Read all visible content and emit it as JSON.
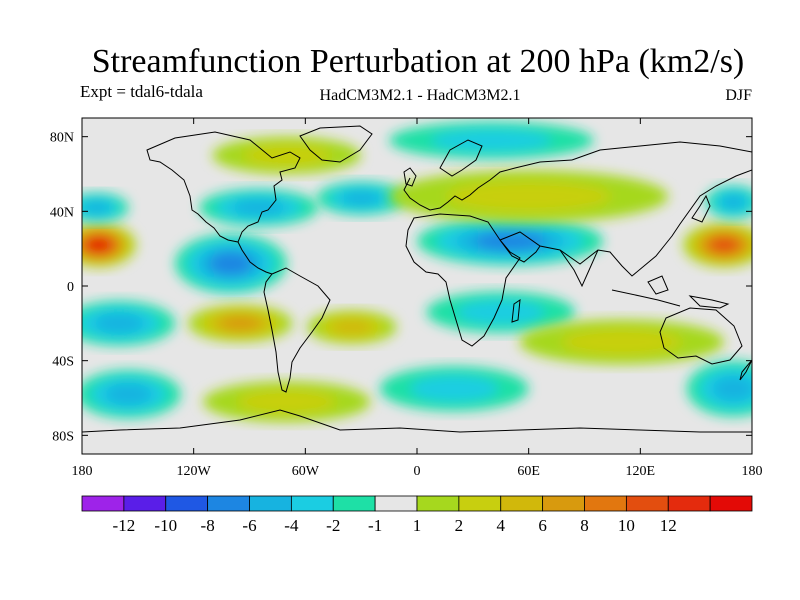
{
  "title": "Streamfunction Perturbation at 200 hPa (km2/s)",
  "subtitle_left": "Expt = tdal6-tdala",
  "subtitle_center": "HadCM3M2.1 - HadCM3M2.1",
  "subtitle_right": "DJF",
  "map": {
    "projection": "cylindrical equidistant",
    "lon_range": [
      -180,
      180
    ],
    "lat_range": [
      -90,
      90
    ],
    "background_color": "#e6e6e6",
    "lon_ticks": [
      {
        "value": -180,
        "label": "180"
      },
      {
        "value": -120,
        "label": "120W"
      },
      {
        "value": -60,
        "label": "60W"
      },
      {
        "value": 0,
        "label": "0"
      },
      {
        "value": 60,
        "label": "60E"
      },
      {
        "value": 120,
        "label": "120E"
      },
      {
        "value": 180,
        "label": "180"
      }
    ],
    "lat_ticks": [
      {
        "value": 80,
        "label": "80N"
      },
      {
        "value": 40,
        "label": "40N"
      },
      {
        "value": 0,
        "label": "0"
      },
      {
        "value": -40,
        "label": "40S"
      },
      {
        "value": -80,
        "label": "80S"
      }
    ],
    "features": [
      {
        "name": "nw-pacific-high",
        "lon": -171,
        "lat": 22,
        "rx": 20,
        "ry": 12,
        "value": 12
      },
      {
        "name": "ne-pacific-low",
        "lon": -172,
        "lat": 42,
        "rx": 17,
        "ry": 8,
        "value": -5
      },
      {
        "name": "central-america-low",
        "lon": -100,
        "lat": 12,
        "rx": 30,
        "ry": 16,
        "value": -6
      },
      {
        "name": "n-america-low",
        "lon": -85,
        "lat": 42,
        "rx": 32,
        "ry": 10,
        "value": -4
      },
      {
        "name": "atlantic-low",
        "lon": -30,
        "lat": 47,
        "rx": 24,
        "ry": 9,
        "value": -4
      },
      {
        "name": "canada-high",
        "lon": -70,
        "lat": 70,
        "rx": 40,
        "ry": 10,
        "value": 2
      },
      {
        "name": "arctic-low",
        "lon": 40,
        "lat": 78,
        "rx": 55,
        "ry": 10,
        "value": -3
      },
      {
        "name": "mideast-low",
        "lon": 50,
        "lat": 24,
        "rx": 50,
        "ry": 13,
        "value": -7
      },
      {
        "name": "asia-high",
        "lon": 60,
        "lat": 48,
        "rx": 75,
        "ry": 14,
        "value": 2
      },
      {
        "name": "africa-low",
        "lon": 45,
        "lat": -14,
        "rx": 40,
        "ry": 11,
        "value": -2
      },
      {
        "name": "w-pacific-high",
        "lon": 165,
        "lat": 22,
        "rx": 22,
        "ry": 12,
        "value": 10
      },
      {
        "name": "n-pacific-low",
        "lon": 170,
        "lat": 45,
        "rx": 15,
        "ry": 9,
        "value": -4
      },
      {
        "name": "s-pacific-low",
        "lon": -160,
        "lat": -20,
        "rx": 30,
        "ry": 12,
        "value": -5
      },
      {
        "name": "s-america-high",
        "lon": -95,
        "lat": -20,
        "rx": 28,
        "ry": 10,
        "value": 7
      },
      {
        "name": "s-atlantic-high",
        "lon": -35,
        "lat": -22,
        "rx": 24,
        "ry": 9,
        "value": 4
      },
      {
        "name": "s-ocean-low-w",
        "lon": -155,
        "lat": -58,
        "rx": 28,
        "ry": 13,
        "value": -4
      },
      {
        "name": "s-ocean-high",
        "lon": -70,
        "lat": -62,
        "rx": 45,
        "ry": 11,
        "value": 2
      },
      {
        "name": "s-indian-low",
        "lon": 20,
        "lat": -55,
        "rx": 40,
        "ry": 12,
        "value": -3
      },
      {
        "name": "indian-ocean-high",
        "lon": 110,
        "lat": -30,
        "rx": 55,
        "ry": 12,
        "value": 3
      },
      {
        "name": "tasman-low",
        "lon": 170,
        "lat": -55,
        "rx": 25,
        "ry": 15,
        "value": -5
      }
    ]
  },
  "colorbar": {
    "colors": [
      "#9e23e9",
      "#5a1ee8",
      "#1f58e4",
      "#1d86e2",
      "#17b3e0",
      "#1bcde2",
      "#1ee0a6",
      "#e6e6e6",
      "#a6d81e",
      "#c8cf0f",
      "#d1b80b",
      "#d89a0e",
      "#e2770f",
      "#e34e0f",
      "#e42b0d",
      "#e30a06"
    ],
    "labels": [
      "-12",
      "-10",
      "-8",
      "-6",
      "-4",
      "-2",
      "-1",
      "1",
      "2",
      "4",
      "6",
      "8",
      "10",
      "12"
    ],
    "levels": [
      -12,
      -10,
      -8,
      -6,
      -4,
      -2,
      -1,
      1,
      2,
      4,
      6,
      8,
      10,
      12
    ]
  }
}
